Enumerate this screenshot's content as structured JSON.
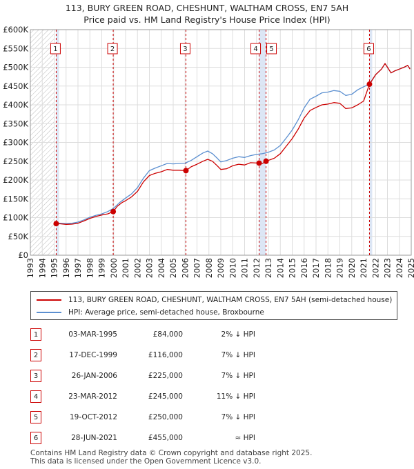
{
  "title": "113, BURY GREEN ROAD, CHESHUNT, WALTHAM CROSS, EN7 5AH",
  "subtitle": "Price paid vs. HM Land Registry's House Price Index (HPI)",
  "chart_data": {
    "type": "line",
    "title": "113, BURY GREEN ROAD, CHESHUNT, WALTHAM CROSS, EN7 5AH",
    "subtitle": "Price paid vs. HM Land Registry's House Price Index (HPI)",
    "xlim": [
      1993,
      2025
    ],
    "ylim": [
      0,
      600000
    ],
    "y_ticks": [
      0,
      50000,
      100000,
      150000,
      200000,
      250000,
      300000,
      350000,
      400000,
      450000,
      500000,
      550000,
      600000
    ],
    "y_tick_labels": [
      "£0",
      "£50K",
      "£100K",
      "£150K",
      "£200K",
      "£250K",
      "£300K",
      "£350K",
      "£400K",
      "£450K",
      "£500K",
      "£550K",
      "£600K"
    ],
    "x_ticks": [
      1993,
      1994,
      1995,
      1996,
      1997,
      1998,
      1999,
      2000,
      2001,
      2002,
      2003,
      2004,
      2005,
      2006,
      2007,
      2008,
      2009,
      2010,
      2011,
      2012,
      2013,
      2014,
      2015,
      2016,
      2017,
      2018,
      2019,
      2020,
      2021,
      2022,
      2023,
      2024,
      2025
    ],
    "grid": true,
    "legend_placement": "below",
    "colors": {
      "property": "#cc0000",
      "hpi": "#5b8fd0",
      "marker_line": "#cc0000",
      "sale_shade": "#dce6f5",
      "hatch": "#bbbbbb"
    },
    "series": [
      {
        "name": "113, BURY GREEN ROAD, CHESHUNT, WALTHAM CROSS, EN7 5AH (semi-detached house)",
        "points": [
          [
            1995.17,
            84000
          ],
          [
            1995.5,
            83500
          ],
          [
            1996,
            82000
          ],
          [
            1996.5,
            82500
          ],
          [
            1997,
            85000
          ],
          [
            1997.5,
            91000
          ],
          [
            1998,
            98000
          ],
          [
            1998.5,
            103000
          ],
          [
            1999,
            107000
          ],
          [
            1999.5,
            110000
          ],
          [
            1999.96,
            116000
          ],
          [
            2000.3,
            130000
          ],
          [
            2000.7,
            140000
          ],
          [
            2001,
            145000
          ],
          [
            2001.5,
            155000
          ],
          [
            2002,
            170000
          ],
          [
            2002.5,
            195000
          ],
          [
            2003,
            212000
          ],
          [
            2003.5,
            218000
          ],
          [
            2004,
            222000
          ],
          [
            2004.5,
            228000
          ],
          [
            2005,
            226000
          ],
          [
            2005.5,
            226000
          ],
          [
            2006.07,
            225000
          ],
          [
            2006.5,
            235000
          ],
          [
            2007,
            242000
          ],
          [
            2007.5,
            250000
          ],
          [
            2007.9,
            255000
          ],
          [
            2008.3,
            250000
          ],
          [
            2008.7,
            238000
          ],
          [
            2009,
            228000
          ],
          [
            2009.5,
            230000
          ],
          [
            2010,
            238000
          ],
          [
            2010.5,
            242000
          ],
          [
            2011,
            240000
          ],
          [
            2011.5,
            246000
          ],
          [
            2012.22,
            245000
          ],
          [
            2012.5,
            244000
          ],
          [
            2012.8,
            250000
          ],
          [
            2013.5,
            258000
          ],
          [
            2014,
            270000
          ],
          [
            2014.5,
            290000
          ],
          [
            2015,
            310000
          ],
          [
            2015.5,
            335000
          ],
          [
            2016,
            365000
          ],
          [
            2016.5,
            385000
          ],
          [
            2017,
            393000
          ],
          [
            2017.5,
            400000
          ],
          [
            2018,
            402000
          ],
          [
            2018.5,
            406000
          ],
          [
            2019,
            404000
          ],
          [
            2019.5,
            390000
          ],
          [
            2020,
            392000
          ],
          [
            2020.5,
            400000
          ],
          [
            2021,
            410000
          ],
          [
            2021.49,
            455000
          ],
          [
            2021.8,
            470000
          ],
          [
            2022,
            480000
          ],
          [
            2022.5,
            495000
          ],
          [
            2022.8,
            510000
          ],
          [
            2023,
            500000
          ],
          [
            2023.3,
            485000
          ],
          [
            2023.6,
            490000
          ],
          [
            2024,
            495000
          ],
          [
            2024.4,
            500000
          ],
          [
            2024.7,
            505000
          ],
          [
            2024.9,
            495000
          ]
        ]
      },
      {
        "name": "HPI: Average price, semi-detached house, Broxbourne",
        "points": [
          [
            1995,
            86000
          ],
          [
            1995.5,
            85000
          ],
          [
            1996,
            84000
          ],
          [
            1996.5,
            85000
          ],
          [
            1997,
            88000
          ],
          [
            1997.5,
            94000
          ],
          [
            1998,
            101000
          ],
          [
            1998.5,
            106000
          ],
          [
            1999,
            110000
          ],
          [
            1999.5,
            116000
          ],
          [
            2000,
            125000
          ],
          [
            2000.5,
            140000
          ],
          [
            2001,
            152000
          ],
          [
            2001.5,
            163000
          ],
          [
            2002,
            180000
          ],
          [
            2002.5,
            205000
          ],
          [
            2003,
            225000
          ],
          [
            2003.5,
            232000
          ],
          [
            2004,
            238000
          ],
          [
            2004.5,
            244000
          ],
          [
            2005,
            243000
          ],
          [
            2005.5,
            244000
          ],
          [
            2006,
            245000
          ],
          [
            2006.5,
            252000
          ],
          [
            2007,
            262000
          ],
          [
            2007.5,
            272000
          ],
          [
            2007.9,
            277000
          ],
          [
            2008.3,
            270000
          ],
          [
            2008.7,
            258000
          ],
          [
            2009,
            248000
          ],
          [
            2009.5,
            252000
          ],
          [
            2010,
            258000
          ],
          [
            2010.5,
            262000
          ],
          [
            2011,
            260000
          ],
          [
            2011.5,
            265000
          ],
          [
            2012,
            268000
          ],
          [
            2012.5,
            270000
          ],
          [
            2013,
            274000
          ],
          [
            2013.5,
            280000
          ],
          [
            2014,
            292000
          ],
          [
            2014.5,
            312000
          ],
          [
            2015,
            333000
          ],
          [
            2015.5,
            360000
          ],
          [
            2016,
            392000
          ],
          [
            2016.5,
            415000
          ],
          [
            2017,
            423000
          ],
          [
            2017.5,
            432000
          ],
          [
            2018,
            434000
          ],
          [
            2018.5,
            438000
          ],
          [
            2019,
            436000
          ],
          [
            2019.5,
            425000
          ],
          [
            2020,
            428000
          ],
          [
            2020.5,
            440000
          ],
          [
            2021,
            448000
          ],
          [
            2021.49,
            455000
          ],
          [
            2021.8,
            470000
          ],
          [
            2022,
            480000
          ],
          [
            2022.5,
            495000
          ],
          [
            2022.8,
            510000
          ],
          [
            2023,
            500000
          ],
          [
            2023.3,
            485000
          ],
          [
            2023.6,
            490000
          ],
          [
            2024,
            495000
          ],
          [
            2024.4,
            500000
          ],
          [
            2024.7,
            505000
          ],
          [
            2024.9,
            495000
          ]
        ]
      }
    ],
    "sales": [
      {
        "num": "1",
        "x": 1995.17,
        "price": 84000
      },
      {
        "num": "2",
        "x": 1999.96,
        "price": 116000
      },
      {
        "num": "3",
        "x": 2006.07,
        "price": 225000
      },
      {
        "num": "4",
        "x": 2012.22,
        "price": 245000
      },
      {
        "num": "5",
        "x": 2012.8,
        "price": 250000
      },
      {
        "num": "6",
        "x": 2021.49,
        "price": 455000
      }
    ]
  },
  "legend": {
    "property_label": "113, BURY GREEN ROAD, CHESHUNT, WALTHAM CROSS, EN7 5AH (semi-detached house)",
    "hpi_label": "HPI: Average price, semi-detached house, Broxbourne"
  },
  "transactions": [
    {
      "num": "1",
      "date": "03-MAR-1995",
      "price": "£84,000",
      "hpi": "2% ↓ HPI"
    },
    {
      "num": "2",
      "date": "17-DEC-1999",
      "price": "£116,000",
      "hpi": "7% ↓ HPI"
    },
    {
      "num": "3",
      "date": "26-JAN-2006",
      "price": "£225,000",
      "hpi": "7% ↓ HPI"
    },
    {
      "num": "4",
      "date": "23-MAR-2012",
      "price": "£245,000",
      "hpi": "11% ↓ HPI"
    },
    {
      "num": "5",
      "date": "19-OCT-2012",
      "price": "£250,000",
      "hpi": "7% ↓ HPI"
    },
    {
      "num": "6",
      "date": "28-JUN-2021",
      "price": "£455,000",
      "hpi": "≈ HPI"
    }
  ],
  "footer": {
    "line1": "Contains HM Land Registry data © Crown copyright and database right 2025.",
    "line2": "This data is licensed under the Open Government Licence v3.0."
  }
}
